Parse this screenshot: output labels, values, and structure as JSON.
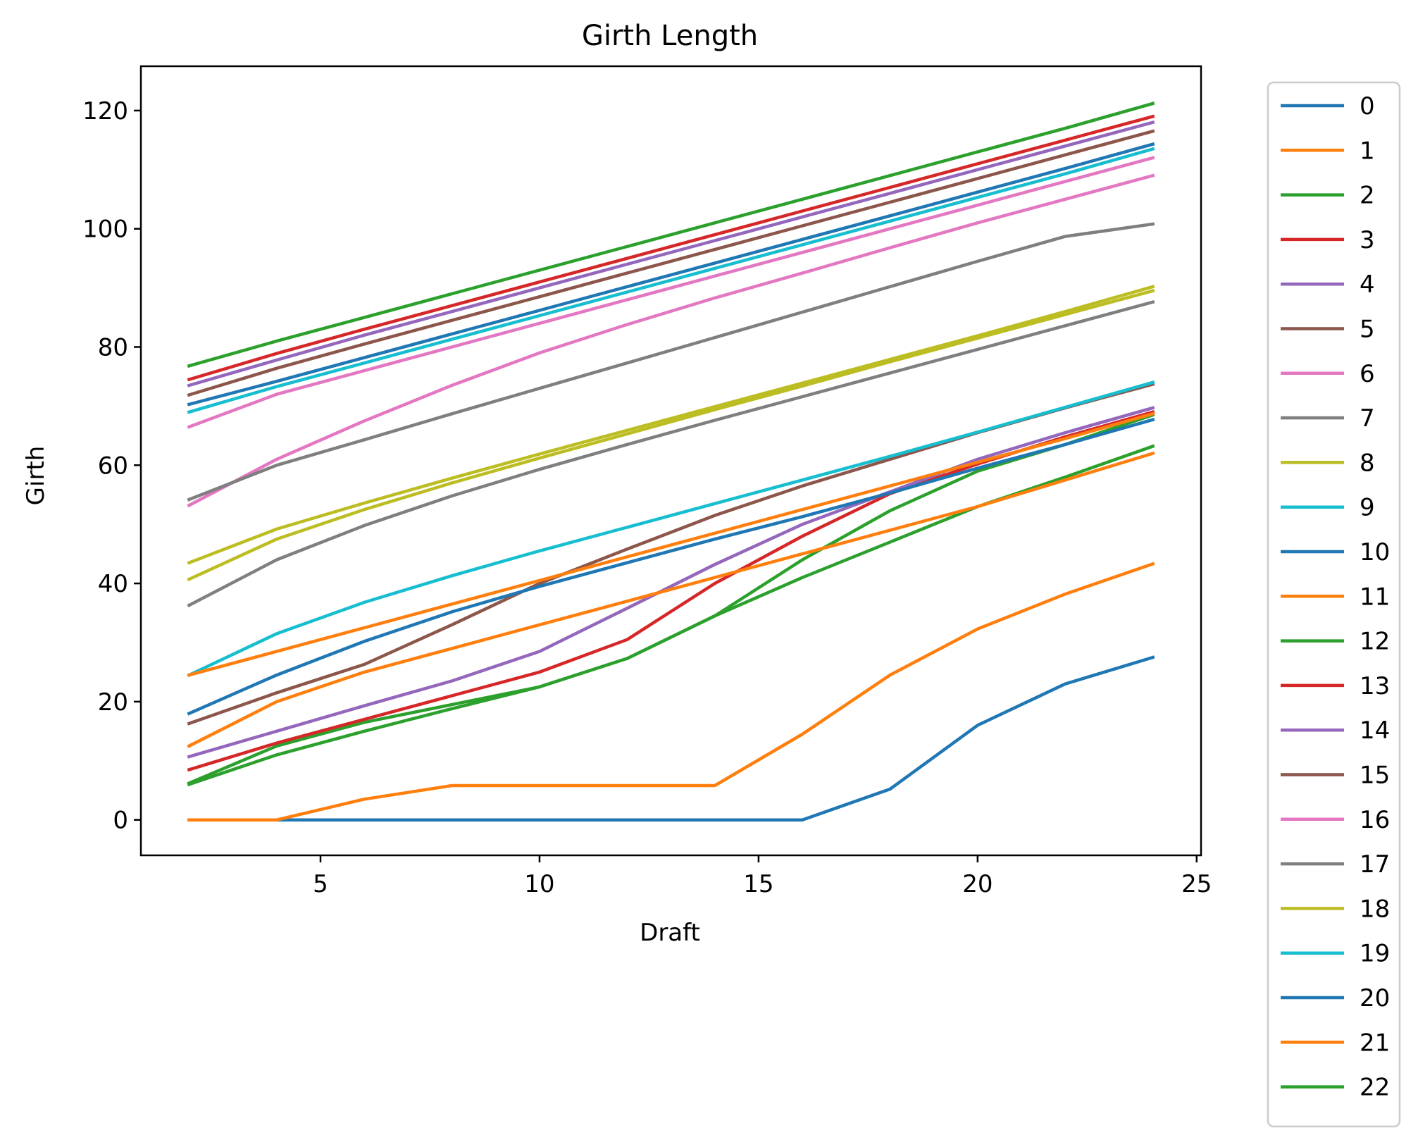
{
  "chart_data": {
    "type": "line",
    "title": "Girth Length",
    "xlabel": "Draft",
    "ylabel": "Girth",
    "xlim": [
      0.9,
      25.1
    ],
    "ylim": [
      -6,
      127.5
    ],
    "xticks": [
      5,
      10,
      15,
      20,
      25
    ],
    "yticks": [
      0,
      20,
      40,
      60,
      80,
      100,
      120
    ],
    "legend_position": "outside-right",
    "x": [
      2,
      4,
      6,
      8,
      10,
      12,
      14,
      16,
      18,
      20,
      22,
      24
    ],
    "series": [
      {
        "name": "0",
        "color": "#1f77b4",
        "values": [
          0,
          0,
          0,
          0,
          0,
          0,
          0,
          0,
          5.2,
          16,
          23,
          27.5
        ]
      },
      {
        "name": "1",
        "color": "#ff7f0e",
        "values": [
          0,
          0,
          3.5,
          5.8,
          5.8,
          5.8,
          5.8,
          14.5,
          24.5,
          32.3,
          38.2,
          43.3
        ]
      },
      {
        "name": "2",
        "color": "#2ca02c",
        "values": [
          6.2,
          12.5,
          16.5,
          19.5,
          22.5,
          27.3,
          34.5,
          44,
          52.3,
          59,
          63.5,
          68.5
        ]
      },
      {
        "name": "3",
        "color": "#d62728",
        "values": [
          8.5,
          13,
          17,
          21,
          25,
          30.5,
          40,
          48,
          55.2,
          60.2,
          64.8,
          69
        ]
      },
      {
        "name": "4",
        "color": "#9467bd",
        "values": [
          10.7,
          15,
          19.3,
          23.5,
          28.5,
          35.8,
          43.2,
          50,
          55.5,
          61,
          65.5,
          69.7
        ]
      },
      {
        "name": "5",
        "color": "#8c564b",
        "values": [
          16.3,
          21.5,
          26.3,
          33,
          40,
          45.8,
          51.5,
          56.5,
          61,
          65.5,
          69.7,
          73.7
        ]
      },
      {
        "name": "6",
        "color": "#e377c2",
        "values": [
          53.2,
          61,
          67.5,
          73.5,
          79,
          83.8,
          88.3,
          92.5,
          96.8,
          101,
          105,
          109
        ]
      },
      {
        "name": "7",
        "color": "#7f7f7f",
        "values": [
          36.3,
          44,
          49.8,
          54.8,
          59.3,
          63.5,
          67.6,
          71.6,
          75.6,
          79.6,
          83.6,
          87.6
        ]
      },
      {
        "name": "8",
        "color": "#bcbd22",
        "values": [
          40.7,
          47.5,
          52.5,
          57,
          61.2,
          65.3,
          69.4,
          73.4,
          77.5,
          81.5,
          85.5,
          89.5
        ]
      },
      {
        "name": "9",
        "color": "#17becf",
        "values": [
          24.5,
          31.5,
          36.8,
          41.3,
          45.5,
          49.5,
          53.5,
          57.5,
          61.5,
          65.6,
          69.8,
          74
        ]
      },
      {
        "name": "10",
        "color": "#1f77b4",
        "values": [
          18,
          24.5,
          30.2,
          35.2,
          39.5,
          43.5,
          47.5,
          51.3,
          55.3,
          59.5,
          63.5,
          67.7
        ]
      },
      {
        "name": "11",
        "color": "#ff7f0e",
        "values": [
          24.5,
          28.5,
          32.5,
          36.5,
          40.5,
          44.5,
          48.5,
          52.5,
          56.5,
          60.5,
          64.5,
          68.7
        ]
      },
      {
        "name": "12",
        "color": "#2ca02c",
        "values": [
          6,
          11,
          15,
          18.8,
          22.5,
          27.3,
          34.5,
          41,
          47,
          53,
          58,
          63.2
        ]
      },
      {
        "name": "13",
        "color": "#d62728",
        "values": [
          74.5,
          78.9,
          83,
          87,
          91,
          95,
          99,
          103,
          107,
          111,
          115,
          119
        ]
      },
      {
        "name": "14",
        "color": "#9467bd",
        "values": [
          73.5,
          77.8,
          82,
          86,
          90,
          94,
          98,
          102,
          106,
          110,
          114,
          118
        ]
      },
      {
        "name": "15",
        "color": "#8c564b",
        "values": [
          71.9,
          76.4,
          80.5,
          84.5,
          88.5,
          92.5,
          96.5,
          100.5,
          104.5,
          108.5,
          112.5,
          116.5
        ]
      },
      {
        "name": "16",
        "color": "#e377c2",
        "values": [
          66.5,
          72,
          76,
          80,
          84,
          88,
          92,
          96,
          100,
          104,
          108,
          112
        ]
      },
      {
        "name": "17",
        "color": "#7f7f7f",
        "values": [
          54.2,
          60,
          64.3,
          68.7,
          73,
          77.3,
          81.6,
          85.9,
          90.2,
          94.5,
          98.7,
          100.8
        ]
      },
      {
        "name": "18",
        "color": "#bcbd22",
        "values": [
          43.5,
          49.2,
          53.6,
          57.8,
          61.9,
          65.9,
          69.9,
          73.9,
          77.9,
          81.9,
          86,
          90.2
        ]
      },
      {
        "name": "19",
        "color": "#17becf",
        "values": [
          69,
          73.3,
          77.3,
          81.3,
          85.3,
          89.3,
          93.3,
          97.3,
          101.3,
          105.3,
          109.3,
          113.5
        ]
      },
      {
        "name": "20",
        "color": "#1f77b4",
        "values": [
          70.3,
          74.2,
          78.2,
          82.2,
          86.2,
          90.2,
          94.2,
          98.2,
          102.2,
          106.2,
          110.2,
          114.3
        ]
      },
      {
        "name": "21",
        "color": "#ff7f0e",
        "values": [
          12.5,
          20,
          25,
          29,
          33,
          37,
          41,
          45,
          49,
          53,
          57.5,
          62
        ]
      },
      {
        "name": "22",
        "color": "#2ca02c",
        "values": [
          76.8,
          81,
          85,
          89,
          93,
          97,
          101,
          105,
          109,
          113,
          117,
          121.2
        ]
      }
    ]
  }
}
